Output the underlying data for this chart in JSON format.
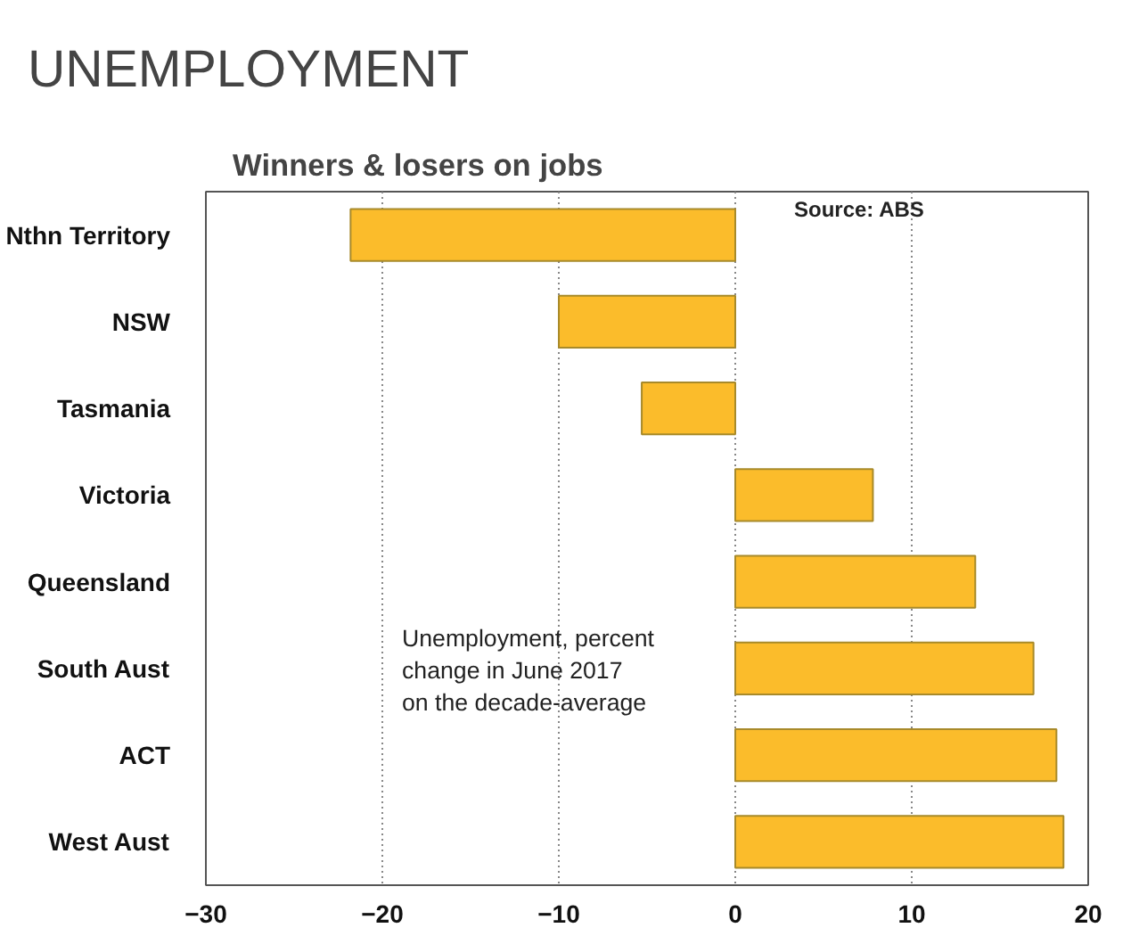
{
  "chart_data": {
    "type": "bar",
    "orientation": "horizontal",
    "title": "UNEMPLOYMENT",
    "subtitle": "Winners & losers on  jobs",
    "categories": [
      "Nthn Territory",
      "NSW",
      "Tasmania",
      "Victoria",
      "Queensland",
      "South Aust",
      "ACT",
      "West Aust"
    ],
    "values": [
      -21.8,
      -10.0,
      -5.3,
      7.8,
      13.6,
      16.9,
      18.2,
      18.6
    ],
    "color": "#fbbc2b",
    "xlim": [
      -30,
      20
    ],
    "xticks": [
      -30,
      -20,
      -10,
      0,
      10,
      20
    ],
    "grid": "x",
    "annotations": [
      "Source: ABS",
      "Unemployment, percent\nchange in June 2017\non the decade-average"
    ]
  }
}
